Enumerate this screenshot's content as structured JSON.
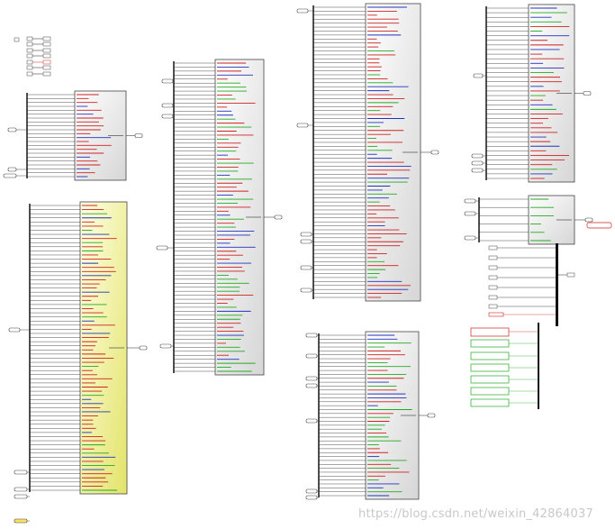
{
  "colors": {
    "line": "#222222",
    "box_border": "#444444",
    "box_fill_top": "#ffffff",
    "box_fill_bottom": "#d6d6d6",
    "highlight_fill_top": "#ffffe6",
    "highlight_fill_bottom": "#e3e36a",
    "signal_red": "#cc2222",
    "signal_green": "#22aa22",
    "signal_blue": "#2233bb",
    "port_fill": "#ffffff",
    "port_highlight": "#ffe060",
    "watermark": "#c8c8c8"
  },
  "watermark": "https://blog.csdn.net/weixin_42864037"
}
